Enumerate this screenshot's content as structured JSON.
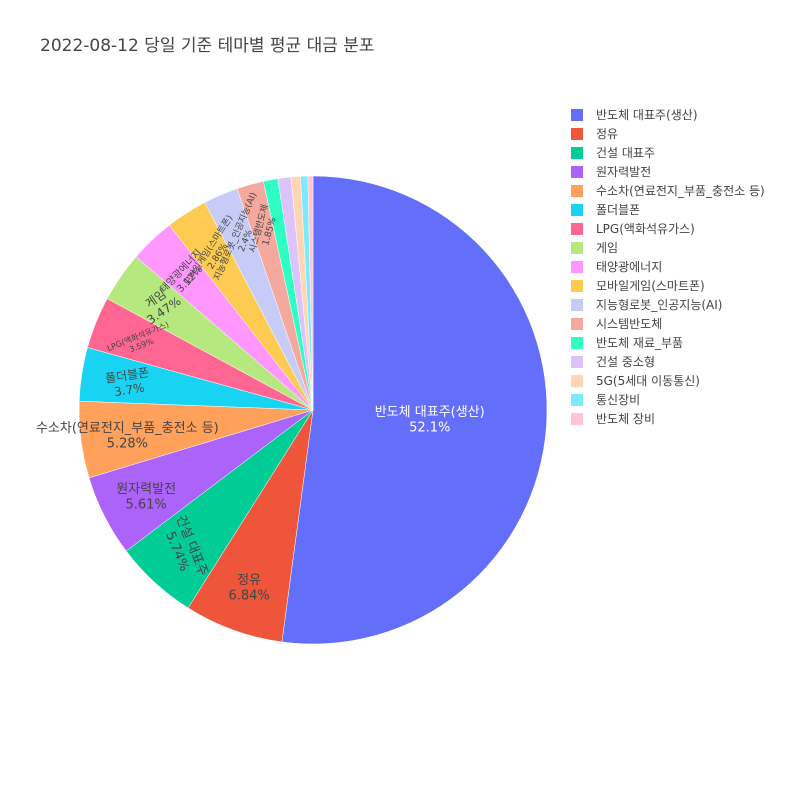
{
  "chart_data": {
    "type": "pie",
    "title": "2022-08-12 당일 기준 테마별 평균 대금 분포",
    "legend_position": "right",
    "direction": "clockwise",
    "start_angle_deg": 0,
    "slices": [
      {
        "label": "반도체 대표주(생산)",
        "value": 52.1,
        "text": "52.1%",
        "color": "#636efa"
      },
      {
        "label": "정유",
        "value": 6.84,
        "text": "6.84%",
        "color": "#ef553b"
      },
      {
        "label": "건설 대표주",
        "value": 5.74,
        "text": "5.74%",
        "color": "#00cc96"
      },
      {
        "label": "원자력발전",
        "value": 5.61,
        "text": "5.61%",
        "color": "#ab63fa"
      },
      {
        "label": "수소차(연료전지_부품_충전소 등)",
        "value": 5.28,
        "text": "5.28%",
        "color": "#ffa15a"
      },
      {
        "label": "폴더블폰",
        "value": 3.7,
        "text": "3.7%",
        "color": "#19d3f3"
      },
      {
        "label": "LPG(액화석유가스)",
        "value": 3.59,
        "text": "3.59%",
        "color": "#ff6692"
      },
      {
        "label": "게임",
        "value": 3.47,
        "text": "3.47%",
        "color": "#b6e880"
      },
      {
        "label": "태양광에너지",
        "value": 3.12,
        "text": "3.12%",
        "color": "#ff97ff"
      },
      {
        "label": "모바일게임(스마트폰)",
        "value": 2.86,
        "text": "2.86%",
        "color": "#fecb52"
      },
      {
        "label": "지능형로봇_인공지능(AI)",
        "value": 2.4,
        "text": "2.4%",
        "color": "#c6cbf8"
      },
      {
        "label": "시스템반도체",
        "value": 1.85,
        "text": "1.85%",
        "color": "#f5a89d"
      },
      {
        "label": "반도체 재료_부품",
        "value": 1.0,
        "text": "",
        "color": "#2efdc4"
      },
      {
        "label": "건설 중소형",
        "value": 0.9,
        "text": "",
        "color": "#dcc3f9"
      },
      {
        "label": "5G(5세대 이동통신)",
        "value": 0.65,
        "text": "",
        "color": "#ffd5b5"
      },
      {
        "label": "통신장비",
        "value": 0.5,
        "text": "",
        "color": "#7deaf9"
      },
      {
        "label": "반도체 장비",
        "value": 0.35,
        "text": "",
        "color": "#fdc5d7"
      }
    ]
  }
}
